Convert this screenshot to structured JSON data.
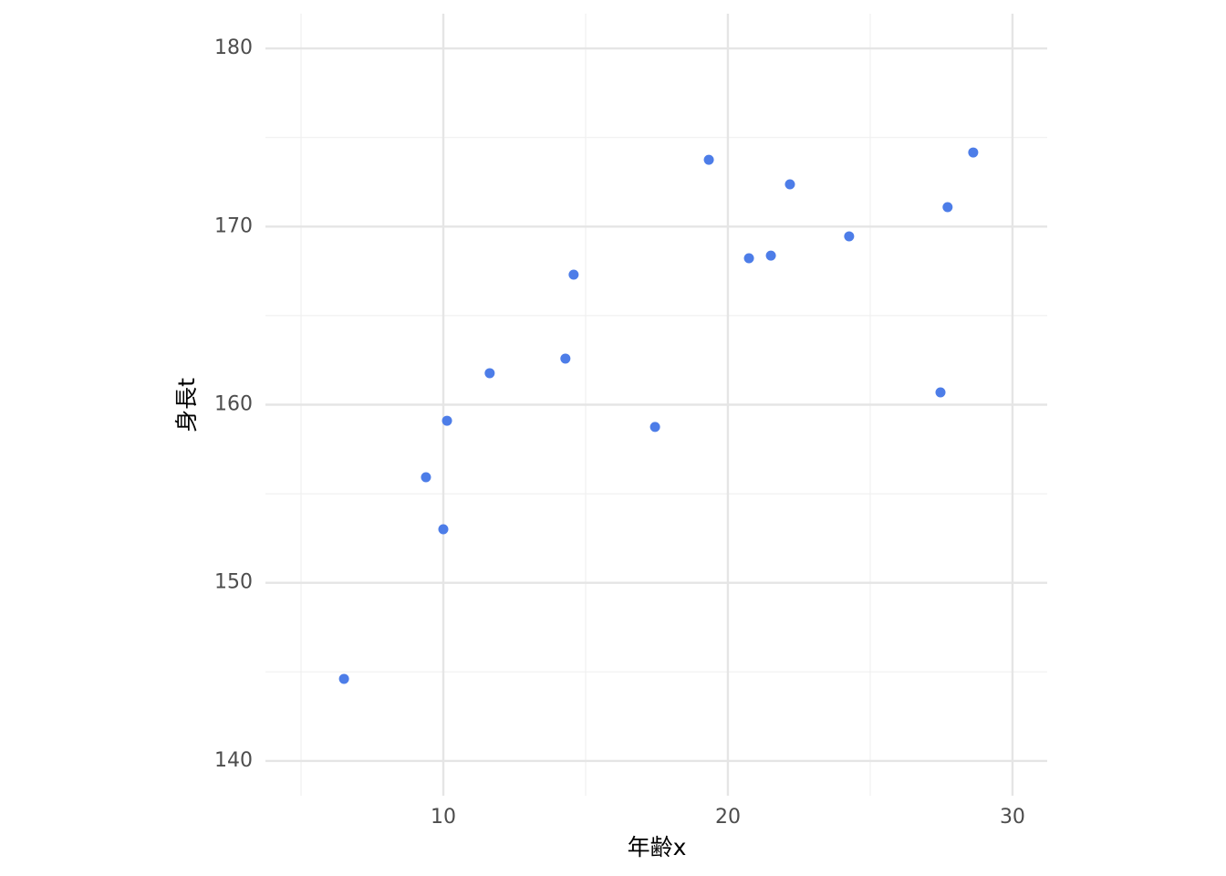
{
  "chart_data": {
    "type": "scatter",
    "x_label": "年齢x",
    "y_label": "身長t",
    "series": [
      {
        "color": "#4d7de8",
        "x": [
          6.51,
          9.39,
          10.0,
          10.13,
          11.63,
          14.29,
          14.58,
          17.44,
          19.33,
          20.74,
          21.51,
          22.18,
          24.26,
          27.47,
          27.72,
          28.62
        ],
        "values": [
          144.61,
          155.93,
          153.01,
          159.1,
          161.77,
          162.59,
          167.3,
          158.75,
          173.75,
          168.22,
          168.37,
          172.37,
          169.45,
          160.69,
          171.09,
          174.16
        ]
      }
    ],
    "xlim": [
      3.75,
      31.22
    ],
    "ylim": [
      138.05,
      181.95
    ],
    "xticks": [
      10,
      20,
      30
    ],
    "yticks": [
      140,
      150,
      160,
      170,
      180
    ],
    "x_minor_grid": [
      5,
      15,
      25
    ],
    "y_minor_grid": [
      145,
      155,
      165,
      175
    ],
    "grid": true
  }
}
